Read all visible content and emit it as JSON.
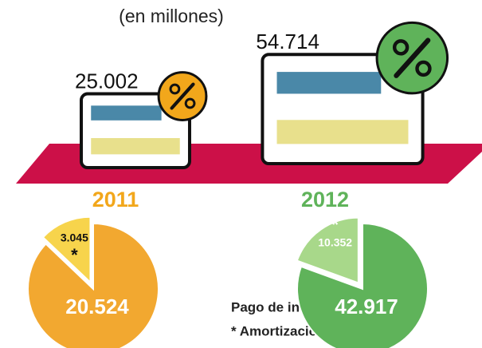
{
  "subtitle": "(en millones)",
  "totals": {
    "categories": [
      "2011",
      "2012"
    ],
    "values": [
      25002,
      54714
    ],
    "value_labels": [
      "25.002",
      "54.714"
    ],
    "colors": [
      "#f2a71b",
      "#5fb35a"
    ]
  },
  "legend": [
    "Pago de intereses",
    "* Amortización"
  ],
  "chart_data": [
    {
      "type": "pie",
      "categories": [
        "Pago de intereses",
        "Amortización"
      ],
      "values": [
        20524,
        3045
      ],
      "value_labels": [
        "20.524",
        "3.045"
      ],
      "colors": [
        "#f2a830",
        "#f7d44c"
      ],
      "annotation": "*"
    },
    {
      "type": "pie",
      "categories": [
        "Pago de intereses",
        "Amortización"
      ],
      "values": [
        42917,
        10352
      ],
      "value_labels": [
        "42.917",
        "10.352"
      ],
      "colors": [
        "#5fb35a",
        "#a8d88a"
      ],
      "annotation": "*"
    }
  ]
}
